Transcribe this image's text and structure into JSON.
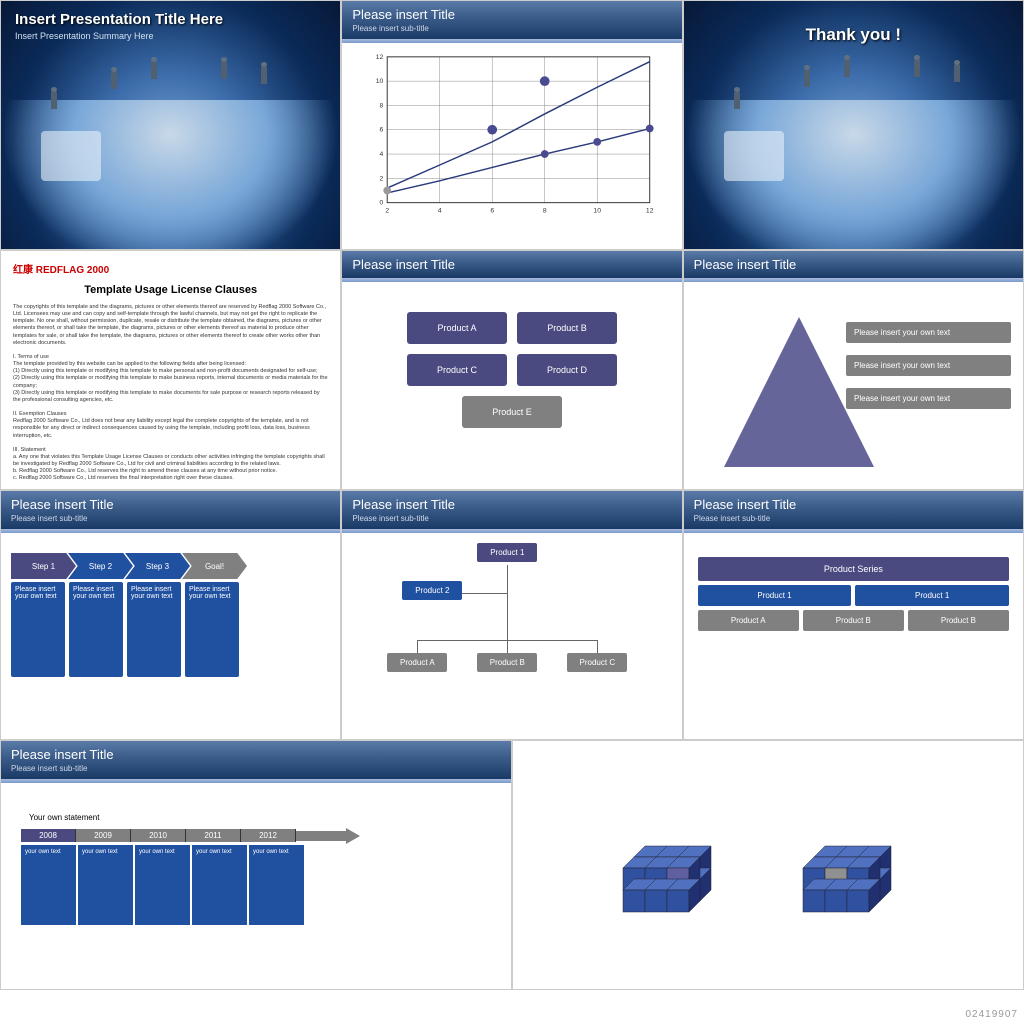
{
  "footer_id": "02419907",
  "slide1": {
    "title": "Insert Presentation Title Here",
    "subtitle": "Insert Presentation Summary Here"
  },
  "slide2": {
    "title": "Please insert Title",
    "subtitle": "Please insert sub-title",
    "chart": {
      "type": "line",
      "xlim": [
        2,
        12
      ],
      "ylim": [
        0,
        12
      ],
      "xticks": [
        2,
        4,
        6,
        8,
        10,
        12
      ],
      "yticks": [
        0,
        2,
        4,
        6,
        8,
        10,
        12
      ],
      "grid_color": "#888",
      "line_color": "#2a3a7a",
      "marker_fill": "#4a4a90",
      "series1": {
        "x": [
          2,
          4,
          6,
          8,
          10,
          12
        ],
        "y": [
          1.2,
          3.1,
          5.0,
          7.3,
          9.5,
          11.6
        ]
      },
      "series2": {
        "x": [
          2,
          4,
          6,
          8,
          10,
          12
        ],
        "y": [
          0.8,
          1.8,
          2.9,
          4.0,
          5.0,
          6.1
        ],
        "markers_at": [
          [
            8,
            4.0
          ],
          [
            10,
            5.0
          ],
          [
            12,
            6.1
          ]
        ]
      },
      "extra_markers": [
        [
          6,
          6.0
        ],
        [
          8,
          10.0
        ]
      ]
    }
  },
  "slide3": {
    "title": "Thank you !"
  },
  "slide4": {
    "logo": "红康 REDFLAG 2000",
    "title": "Template Usage License Clauses",
    "text": "The copyrights of this template and the diagrams, pictures or other elements thereof are reserved by Redflag 2000 Software Co., Ltd. Licensees may use and can copy and self-template through the lawful channels, but may not get the right to replicate the template. No one shall, without permission, duplicate, resale or distribute the template obtained, the diagrams, pictures or other elements thereof, or shall take the template, the diagrams, pictures or other elements thereof as material to produce other templates for sale, or shall take the template, the diagrams, pictures or other elements thereof to create other works other than electronic documents.\n\nI. Terms of use\nThe template provided by this website can be applied to the following fields after being licensed:\n(1) Directly using this template or modifying this template to make personal and non-profit documents designated for self-use;\n(2) Directly using this template or modifying this template to make business reports, internal documents or media materials for the company;\n(3) Directly using this template or modifying this template to make documents for sale purpose or research reports released by the professional consulting agencies, etc.\n\nII. Exemption Clauses\nRedflag 2000 Software Co., Ltd does not bear any liability except legal the complete copyrights of the template, and is not responsible for any direct or indirect consequences caused by using the template, including profit loss, data loss, business interruption, etc.\n\nIII. Statement\na. Any one that violates this Template Usage License Clauses or conducts other activities infringing the template copyrights shall be investigated by Redflag 2000 Software Co., Ltd for civil and criminal liabilities according to the related laws.\nb. Redflag 2000 Software Co., Ltd reserves the right to amend these clauses at any time without prior notice.\nc. Redflag 2000 Software Co., Ltd reserves the final interpretation right over these clauses."
  },
  "slide5": {
    "title": "Please insert Title",
    "products": [
      "Product A",
      "Product B",
      "Product C",
      "Product D",
      "Product E"
    ],
    "colors": {
      "purple": "#4a4a80",
      "gray": "#808080"
    }
  },
  "slide6": {
    "title": "Please insert Title",
    "bars": [
      "Please insert your own text",
      "Please insert your own text",
      "Please insert your own text"
    ],
    "triangle_color": "#4a4a88",
    "bar_color": "#808080"
  },
  "slide7": {
    "title": "Please insert Title",
    "subtitle": "Please insert sub-title",
    "steps": [
      "Step 1",
      "Step 2",
      "Step 3",
      "Goal!"
    ],
    "step_colors": [
      "#4a4a80",
      "#2050a0",
      "#2050a0",
      "#808080"
    ],
    "col_text": "Please insert your own text",
    "col_color": "#2050a0"
  },
  "slide8": {
    "title": "Please insert Title",
    "subtitle": "Please insert sub-title",
    "root": "Product 1",
    "child": "Product 2",
    "leaves": [
      "Product A",
      "Product B",
      "Product C"
    ],
    "colors": {
      "root": "#4a4a80",
      "child": "#2050a0",
      "leaf": "#808080"
    }
  },
  "slide9": {
    "title": "Please insert Title",
    "subtitle": "Please insert sub-title",
    "top": "Product Series",
    "mid": [
      "Product 1",
      "Product 1"
    ],
    "bottom": [
      "Product A",
      "Product B",
      "Product B"
    ],
    "colors": {
      "top": "#4a4a80",
      "mid": "#2050a0",
      "bottom": "#808080"
    }
  },
  "slide10": {
    "title": "Please insert Title",
    "subtitle": "Please insert sub-title",
    "statement": "Your own statement",
    "years": [
      "2008",
      "2009",
      "2010",
      "2011",
      "2012"
    ],
    "year_color": "#4a4a80",
    "col_text": "your own text",
    "col_color": "#2050a0"
  },
  "slide11": {
    "cube_colors": {
      "front": "#3050a0",
      "top": "#5070c0",
      "side": "#203070",
      "accent1": "#6060a0",
      "accent2": "#909090"
    }
  }
}
